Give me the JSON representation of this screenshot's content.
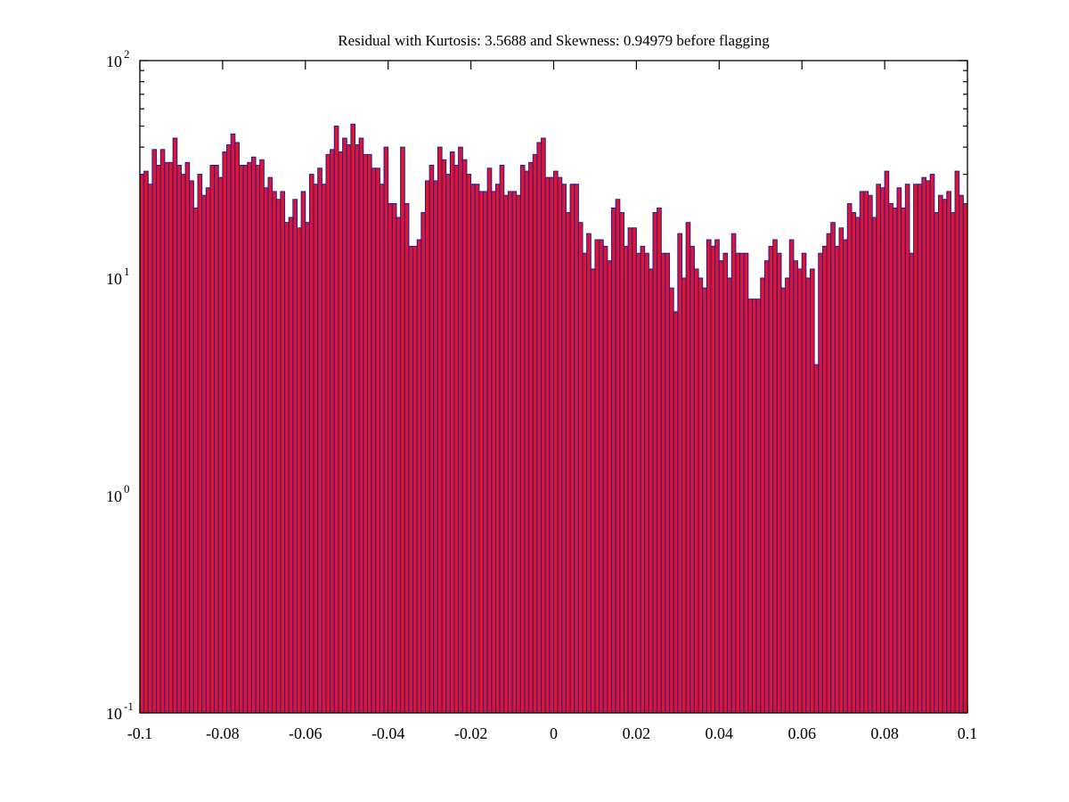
{
  "title": "Residual with Kurtosis: 3.5688 and Skewness: 0.94979 before flagging",
  "chart_data": {
    "type": "bar",
    "subtype": "histogram",
    "title": "Residual with Kurtosis: 3.5688 and Skewness: 0.94979 before flagging",
    "kurtosis": 3.5688,
    "skewness": 0.94979,
    "xlabel": "",
    "ylabel": "",
    "grid": false,
    "legend": null,
    "y_scale": "log10",
    "xlim": [
      -0.1,
      0.1
    ],
    "ylim_log10": [
      -1,
      2
    ],
    "x_start": -0.1,
    "bin_width": 0.001,
    "bar_fill": "#e11430",
    "bar_edge": "#1e1e96",
    "axis_color": "#000000",
    "background": "#ffffff",
    "x_ticks": [
      {
        "v": -0.1,
        "label": "-0.1"
      },
      {
        "v": -0.08,
        "label": "-0.08"
      },
      {
        "v": -0.06,
        "label": "-0.06"
      },
      {
        "v": -0.04,
        "label": "-0.04"
      },
      {
        "v": -0.02,
        "label": "-0.02"
      },
      {
        "v": 0,
        "label": "0"
      },
      {
        "v": 0.02,
        "label": "0.02"
      },
      {
        "v": 0.04,
        "label": "0.04"
      },
      {
        "v": 0.06,
        "label": "0.06"
      },
      {
        "v": 0.08,
        "label": "0.08"
      },
      {
        "v": 0.1,
        "label": "0.1"
      }
    ],
    "y_ticks": [
      {
        "exp": 2,
        "label_base": "10",
        "label_exp": "2"
      },
      {
        "exp": 1,
        "label_base": "10",
        "label_exp": "1"
      },
      {
        "exp": 0,
        "label_base": "10",
        "label_exp": "0"
      },
      {
        "exp": -1,
        "label_base": "10",
        "label_exp": "-1"
      }
    ],
    "values": [
      30,
      31,
      27,
      39,
      33,
      39,
      34,
      34,
      44,
      33,
      30,
      34,
      28,
      21,
      30,
      24,
      26,
      33,
      33,
      29,
      38,
      41,
      46,
      42,
      33,
      33,
      34,
      36,
      33,
      35,
      26,
      29,
      25,
      23,
      25,
      18,
      19,
      23,
      17,
      25,
      18,
      30,
      27,
      32,
      27,
      37,
      39,
      50,
      38,
      44,
      41,
      51,
      41,
      44,
      37,
      37,
      32,
      32,
      27,
      40,
      22,
      22,
      19,
      40,
      22,
      14,
      14,
      15,
      20,
      28,
      33,
      28,
      40,
      35,
      30,
      38,
      33,
      40,
      35,
      30,
      27,
      27,
      25,
      25,
      32,
      25,
      27,
      33,
      24,
      25,
      25,
      24,
      33,
      31,
      34,
      37,
      42,
      44,
      29,
      29,
      31,
      29,
      27,
      20,
      27,
      27,
      18,
      13,
      16,
      11,
      15,
      15,
      14,
      12,
      21,
      23,
      20,
      14,
      17,
      17,
      13,
      14,
      13,
      11,
      20,
      21,
      13,
      13,
      9,
      7,
      16,
      10,
      18,
      14,
      11,
      10,
      9,
      15,
      14,
      15,
      12,
      13,
      10,
      16,
      13,
      13,
      13,
      8,
      8,
      8,
      10,
      12,
      14,
      15,
      13,
      9,
      10,
      15,
      12,
      11,
      13,
      10,
      11,
      4,
      13,
      14,
      16,
      18,
      14,
      17,
      15,
      22,
      20,
      19,
      25,
      25,
      24,
      19,
      27,
      26,
      31,
      22,
      21,
      26,
      21,
      27,
      13,
      27,
      27,
      29,
      28,
      30,
      20,
      24,
      23,
      25,
      20,
      31,
      24,
      22
    ]
  }
}
